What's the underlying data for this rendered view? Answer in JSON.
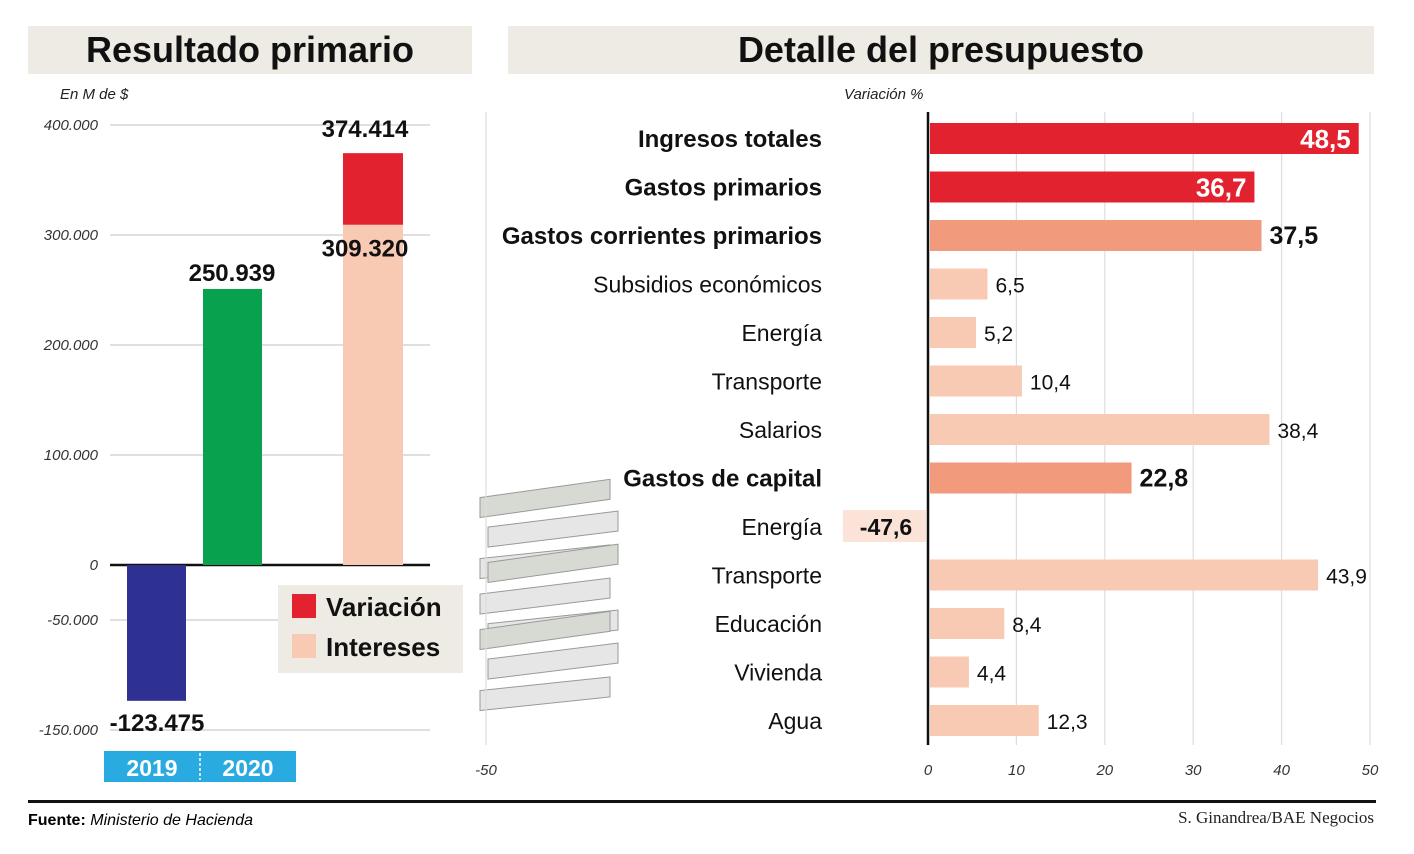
{
  "source_label": "Fuente:",
  "source_value": "Ministerio de Hacienda",
  "credit": "S. Ginandrea/BAE Negocios",
  "colors": {
    "red": "#e3222f",
    "mid": "#f29a7c",
    "light": "#f8c9b3",
    "green": "#08a24f",
    "blue": "#2e3192",
    "year": "#29abe2",
    "title_bg": "#eeebe4"
  },
  "chart_data": [
    {
      "type": "bar",
      "title": "Resultado primario",
      "ylabel": "En M de $",
      "ylim": [
        -150000,
        400000
      ],
      "yticks": [
        400000,
        300000,
        200000,
        100000,
        0,
        -50000,
        -150000
      ],
      "ytick_labels": [
        "400.000",
        "300.000",
        "200.000",
        "100.000",
        "0",
        "-50.000",
        "-150.000"
      ],
      "categories": [
        "2019",
        "2020"
      ],
      "bars": [
        {
          "category": "2019",
          "value": -123475,
          "label": "-123.475",
          "color": "blue"
        },
        {
          "category": "2020",
          "value": 250939,
          "label": "250.939",
          "color": "green"
        },
        {
          "category": "2020",
          "stack": [
            {
              "name": "Intereses",
              "value": 309320,
              "label": "309.320",
              "color": "light"
            },
            {
              "name": "Variación",
              "value": 374414,
              "label": "374.414",
              "color": "red"
            }
          ]
        }
      ],
      "legend": {
        "placement": "bottom-right",
        "items": [
          {
            "name": "Variación",
            "color": "red"
          },
          {
            "name": "Intereses",
            "color": "light"
          }
        ]
      }
    },
    {
      "type": "bar",
      "orientation": "horizontal",
      "title": "Detalle del presupuesto",
      "xlabel": "Variación %",
      "xlim": [
        -50,
        50
      ],
      "xticks": [
        -50,
        0,
        10,
        20,
        30,
        40,
        50
      ],
      "categories": [
        "Ingresos totales",
        "Gastos primarios",
        "Gastos corrientes primarios",
        "Subsidios económicos",
        "Energía",
        "Transporte",
        "Salarios",
        "Gastos de capital",
        "Energía",
        "Transporte",
        "Educación",
        "Vivienda",
        "Agua"
      ],
      "values": [
        48.5,
        36.7,
        37.5,
        6.5,
        5.2,
        10.4,
        38.4,
        22.8,
        -47.6,
        43.9,
        8.4,
        4.4,
        12.3
      ],
      "labels": [
        "48,5",
        "36,7",
        "37,5",
        "6,5",
        "5,2",
        "10,4",
        "38,4",
        "22,8",
        "-47,6",
        "43,9",
        "8,4",
        "4,4",
        "12,3"
      ],
      "bold": [
        true,
        true,
        true,
        false,
        false,
        false,
        false,
        true,
        false,
        false,
        false,
        false,
        false
      ],
      "colors": [
        "red",
        "red",
        "mid",
        "light",
        "light",
        "light",
        "light",
        "mid",
        "light",
        "light",
        "light",
        "light",
        "light"
      ]
    }
  ]
}
